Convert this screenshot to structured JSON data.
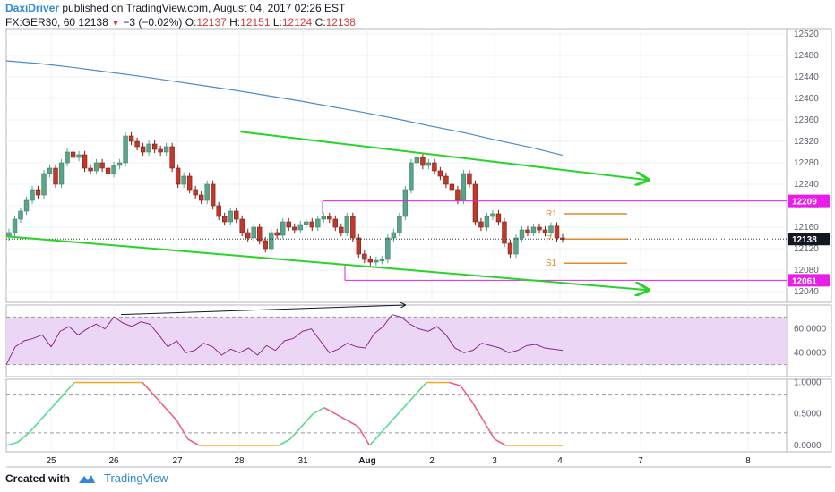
{
  "header": {
    "author": "DaxiDriver",
    "published": "published on TradingView.com, August 04, 2017 02:26 EST",
    "symbol": "FX:GER30, 60",
    "last": "12138",
    "change": "−3 (−0.02%)",
    "open_label": "O:",
    "open": "12137",
    "high_label": "H:",
    "high": "12151",
    "low_label": "L:",
    "low": "12124",
    "close_label": "C:",
    "close": "12138"
  },
  "footer": {
    "created_with": "Created with",
    "brand": "TradingView"
  },
  "colors": {
    "up": "#8fc9b3",
    "down": "#c0392b",
    "candle_body_up": "#5aa58a",
    "trendline": "#28d428",
    "ma": "#4b8cc6",
    "level": "#e61ee6",
    "pivot": "#e08a2c",
    "rsi_line": "#8b2a8b",
    "rsi_band": "#ecd6f5",
    "stoch_up": "#4ed98a",
    "stoch_down": "#f05a7a",
    "stoch_flat": "#f5a623"
  },
  "chart_data": [
    {
      "type": "candlestick",
      "x_tick_labels": [
        "25",
        "26",
        "27",
        "28",
        "31",
        "Aug",
        "2",
        "3",
        "4",
        "7",
        "8"
      ],
      "y_tick_labels": [
        "12520",
        "12480",
        "12440",
        "12400",
        "12360",
        "12320",
        "12280",
        "12240",
        "12200",
        "12160",
        "12120",
        "12080",
        "12040"
      ],
      "ylim": [
        12020,
        12530
      ],
      "price_badges": [
        {
          "label": "12209",
          "value": 12209,
          "color": "#e61ee6"
        },
        {
          "label": "12138",
          "value": 12138,
          "color": "#131722"
        },
        {
          "label": "12061",
          "value": 12061,
          "color": "#e61ee6"
        }
      ],
      "pivot_labels": [
        {
          "label": "R1",
          "value": 12185
        },
        {
          "label": "P",
          "value": 12138
        },
        {
          "label": "S1",
          "value": 12093
        }
      ],
      "horizontal_levels": [
        12209,
        12061
      ],
      "close_series": [
        12150,
        12175,
        12190,
        12210,
        12230,
        12220,
        12260,
        12270,
        12240,
        12280,
        12300,
        12290,
        12295,
        12270,
        12265,
        12280,
        12270,
        12260,
        12275,
        12280,
        12330,
        12320,
        12310,
        12300,
        12315,
        12305,
        12300,
        12310,
        12270,
        12240,
        12255,
        12230,
        12220,
        12210,
        12240,
        12200,
        12180,
        12170,
        12190,
        12175,
        12150,
        12140,
        12160,
        12135,
        12120,
        12150,
        12145,
        12170,
        12160,
        12155,
        12165,
        12170,
        12160,
        12175,
        12180,
        12175,
        12160,
        12150,
        12180,
        12140,
        12110,
        12100,
        12095,
        12098,
        12100,
        12140,
        12150,
        12180,
        12230,
        12280,
        12290,
        12275,
        12280,
        12265,
        12255,
        12240,
        12230,
        12210,
        12260,
        12240,
        12170,
        12160,
        12180,
        12185,
        12170,
        12130,
        12110,
        12140,
        12155,
        12150,
        12160,
        12155,
        12150,
        12162,
        12140,
        12138
      ],
      "ma_series": [
        12470,
        12465,
        12458,
        12450,
        12442,
        12433,
        12424,
        12415,
        12405,
        12395,
        12384,
        12373,
        12361,
        12348,
        12336,
        12322,
        12309,
        12294
      ],
      "trendlines": [
        {
          "from": [
            1.8,
            12338
          ],
          "to": [
            9.7,
            12248
          ]
        },
        {
          "from": [
            0.0,
            12143
          ],
          "to": [
            9.7,
            12043
          ]
        }
      ]
    },
    {
      "type": "line",
      "name": "RSI",
      "y_tick_labels": [
        "60.0000",
        "40.0000"
      ],
      "ylim": [
        20,
        80
      ],
      "band": [
        30,
        70
      ],
      "values": [
        30,
        45,
        50,
        52,
        55,
        45,
        58,
        62,
        55,
        60,
        64,
        60,
        70,
        65,
        62,
        66,
        64,
        55,
        45,
        50,
        40,
        42,
        48,
        45,
        38,
        43,
        40,
        44,
        38,
        46,
        42,
        50,
        52,
        58,
        60,
        50,
        40,
        43,
        48,
        45,
        44,
        56,
        62,
        72,
        70,
        64,
        60,
        58,
        62,
        55,
        44,
        40,
        42,
        48,
        46,
        44,
        40,
        42,
        46,
        47,
        44,
        43,
        42
      ]
    },
    {
      "type": "line",
      "name": "Stochastic",
      "y_tick_labels": [
        "1.0000",
        "0.5000",
        "0.0000"
      ],
      "ylim": [
        -0.1,
        1.05
      ],
      "values": [
        0,
        0.05,
        0.2,
        0.4,
        0.6,
        0.8,
        1,
        1,
        1,
        1,
        1,
        1,
        1,
        0.8,
        0.6,
        0.4,
        0.1,
        0,
        0,
        0,
        0,
        0,
        0,
        0,
        0,
        0.1,
        0.3,
        0.5,
        0.6,
        0.5,
        0.4,
        0.3,
        0,
        0.2,
        0.4,
        0.6,
        0.8,
        1,
        1,
        1,
        0.95,
        0.7,
        0.4,
        0.1,
        0,
        0,
        0,
        0,
        0,
        0
      ]
    }
  ]
}
